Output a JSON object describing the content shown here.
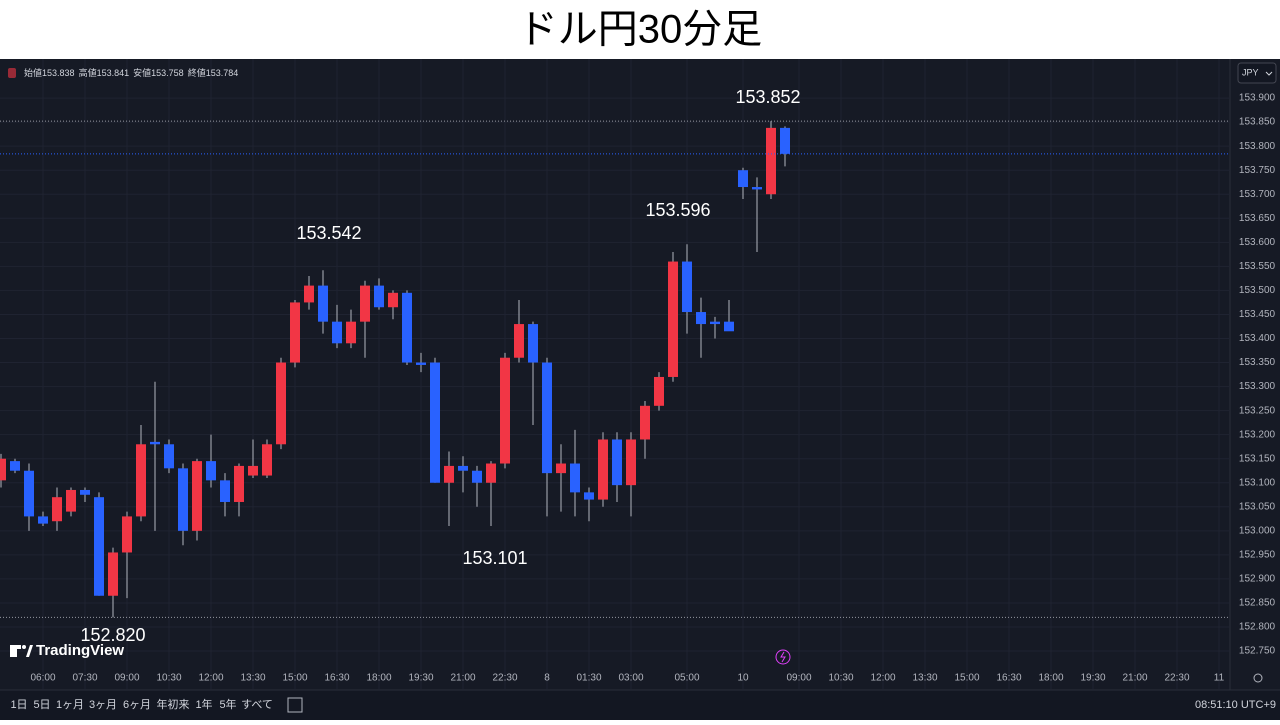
{
  "title": "ドル円30分足",
  "chart_data": {
    "type": "candlestick",
    "currency": "JPY",
    "ohlc_labels": [
      "始値",
      "高値",
      "安値",
      "終値"
    ],
    "up_color": "#f23645",
    "down_color": "#2962ff",
    "categories": [
      null,
      null,
      null,
      "06:00",
      null,
      null,
      "07:30",
      null,
      null,
      "09:00",
      null,
      null,
      "10:30",
      null,
      null,
      "12:00",
      null,
      null,
      "13:30",
      null,
      null,
      "15:00",
      null,
      null,
      "16:30",
      null,
      null,
      "18:00",
      null,
      null,
      "19:30",
      null,
      null,
      "21:00",
      null,
      null,
      "22:30",
      null,
      null,
      "8",
      null,
      null,
      "01:30",
      null,
      null,
      "03:00",
      null,
      null,
      null,
      "05:00",
      null,
      null,
      null,
      "10",
      null,
      null,
      null,
      "09:00",
      null,
      null,
      "10:30",
      null,
      null,
      "12:00",
      null,
      null,
      "13:30",
      null,
      null,
      "15:00",
      null,
      null,
      "16:30",
      null,
      null,
      "18:00",
      null,
      null,
      "19:30",
      null,
      null,
      "21:00",
      null,
      null,
      "22:30",
      null,
      null,
      "11"
    ],
    "open": [
      153.105,
      153.145,
      153.125,
      153.03,
      153.02,
      153.04,
      153.085,
      153.07,
      152.865,
      152.955,
      153.03,
      153.185,
      153.18,
      153.13,
      153.0,
      153.145,
      153.105,
      153.06,
      153.115,
      153.115,
      153.18,
      153.35,
      153.475,
      153.51,
      153.435,
      153.39,
      153.435,
      153.51,
      153.465,
      153.495,
      153.35,
      153.35,
      153.1,
      153.135,
      153.125,
      153.1,
      153.14,
      153.36,
      153.43,
      153.35,
      153.12,
      153.14,
      153.08,
      153.065,
      153.19,
      153.095,
      153.19,
      153.26,
      153.32,
      153.56,
      153.455,
      153.435,
      153.435,
      153.75,
      153.715,
      153.7,
      153.838,
      null,
      null,
      null,
      null,
      null,
      null,
      null,
      null,
      null,
      null,
      null,
      null,
      null,
      null,
      null,
      null,
      null,
      null,
      null,
      null,
      null,
      null,
      null,
      null,
      null,
      null,
      null,
      null,
      null,
      null,
      null
    ],
    "high": [
      153.16,
      153.15,
      153.14,
      153.04,
      153.09,
      153.09,
      153.09,
      153.08,
      152.965,
      153.04,
      153.22,
      153.31,
      153.19,
      153.14,
      153.15,
      153.2,
      153.12,
      153.14,
      153.19,
      153.19,
      153.36,
      153.48,
      153.53,
      153.542,
      153.47,
      153.46,
      153.52,
      153.525,
      153.5,
      153.5,
      153.37,
      153.36,
      153.165,
      153.155,
      153.135,
      153.145,
      153.37,
      153.48,
      153.435,
      153.36,
      153.18,
      153.21,
      153.09,
      153.205,
      153.205,
      153.205,
      153.27,
      153.33,
      153.58,
      153.596,
      153.485,
      153.445,
      153.48,
      153.755,
      153.735,
      153.852,
      153.841,
      null,
      null,
      null,
      null,
      null,
      null,
      null,
      null,
      null,
      null,
      null,
      null,
      null,
      null,
      null,
      null,
      null,
      null,
      null,
      null,
      null,
      null,
      null,
      null,
      null,
      null,
      null,
      null,
      null,
      null,
      null
    ],
    "low": [
      153.09,
      153.12,
      153.0,
      153.01,
      153.0,
      153.03,
      153.06,
      152.865,
      152.82,
      152.86,
      153.02,
      153.0,
      153.12,
      152.97,
      152.98,
      153.09,
      153.03,
      153.03,
      153.11,
      153.11,
      153.17,
      153.34,
      153.46,
      153.41,
      153.38,
      153.38,
      153.36,
      153.46,
      153.44,
      153.345,
      153.33,
      153.1,
      153.01,
      153.08,
      153.05,
      153.01,
      153.13,
      153.35,
      153.22,
      153.03,
      153.04,
      153.03,
      153.02,
      153.05,
      153.06,
      153.03,
      153.15,
      153.25,
      153.31,
      153.41,
      153.36,
      153.4,
      153.42,
      153.69,
      153.58,
      153.69,
      153.758,
      null,
      null,
      null,
      null,
      null,
      null,
      null,
      null,
      null,
      null,
      null,
      null,
      null,
      null,
      null,
      null,
      null,
      null,
      null,
      null,
      null,
      null,
      null,
      null,
      null,
      null,
      null,
      null,
      null,
      null,
      null
    ],
    "close": [
      153.15,
      153.125,
      153.03,
      153.015,
      153.07,
      153.085,
      153.075,
      152.865,
      152.955,
      153.03,
      153.18,
      153.18,
      153.13,
      153.0,
      153.145,
      153.105,
      153.06,
      153.135,
      153.135,
      153.18,
      153.35,
      153.475,
      153.51,
      153.435,
      153.39,
      153.435,
      153.51,
      153.465,
      153.495,
      153.35,
      153.345,
      153.1,
      153.135,
      153.125,
      153.1,
      153.14,
      153.36,
      153.43,
      153.35,
      153.12,
      153.14,
      153.08,
      153.065,
      153.19,
      153.095,
      153.19,
      153.26,
      153.32,
      153.56,
      153.455,
      153.43,
      153.43,
      153.415,
      153.715,
      153.71,
      153.838,
      153.784,
      null,
      null,
      null,
      null,
      null,
      null,
      null,
      null,
      null,
      null,
      null,
      null,
      null,
      null,
      null,
      null,
      null,
      null,
      null,
      null,
      null,
      null,
      null,
      null,
      null,
      null,
      null,
      null,
      null,
      null,
      null
    ],
    "ylim": [
      152.669,
      153.975
    ],
    "yticks": [
      {
        "value": 152.75,
        "label": "152.750"
      },
      {
        "value": 152.8,
        "label": "152.800"
      },
      {
        "value": 152.85,
        "label": "152.850"
      },
      {
        "value": 152.9,
        "label": "152.900"
      },
      {
        "value": 152.95,
        "label": "152.950"
      },
      {
        "value": 153.0,
        "label": "153.000"
      },
      {
        "value": 153.05,
        "label": "153.050"
      },
      {
        "value": 153.1,
        "label": "153.100"
      },
      {
        "value": 153.15,
        "label": "153.150"
      },
      {
        "value": 153.2,
        "label": "153.200"
      },
      {
        "value": 153.25,
        "label": "153.250"
      },
      {
        "value": 153.3,
        "label": "153.300"
      },
      {
        "value": 153.35,
        "label": "153.350"
      },
      {
        "value": 153.4,
        "label": "153.400"
      },
      {
        "value": 153.45,
        "label": "153.450"
      },
      {
        "value": 153.5,
        "label": "153.500"
      },
      {
        "value": 153.55,
        "label": "153.550"
      },
      {
        "value": 153.6,
        "label": "153.600"
      },
      {
        "value": 153.65,
        "label": "153.650"
      },
      {
        "value": 153.7,
        "label": "153.700"
      },
      {
        "value": 153.75,
        "label": "153.750"
      },
      {
        "value": 153.8,
        "label": "153.800"
      },
      {
        "value": 153.85,
        "label": "153.850"
      },
      {
        "value": 153.9,
        "label": "153.900"
      }
    ],
    "grid": true,
    "annotations": [
      "153.852",
      "153.596",
      "153.542",
      "153.101",
      "152.820"
    ]
  },
  "logo": "TradingView",
  "toolbar": {
    "periods": [
      "1日",
      "5日",
      "1ヶ月",
      "3ヶ月",
      "6ヶ月",
      "年初来",
      "1年",
      "5年",
      "すべて"
    ],
    "clock": "08:51:10 UTC+9"
  }
}
